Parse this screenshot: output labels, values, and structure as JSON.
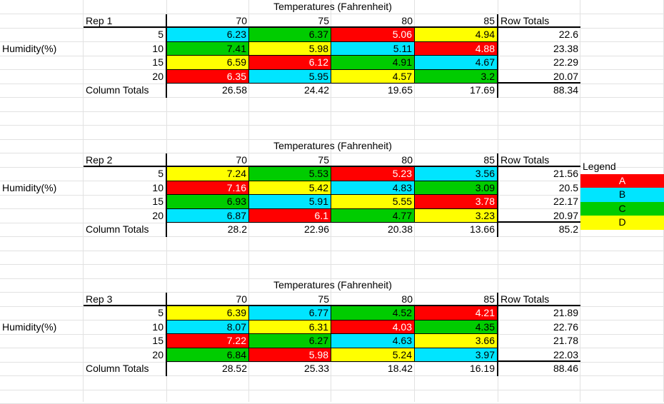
{
  "colors": {
    "A": "#ff0000",
    "B": "#00e5ff",
    "C": "#00cc00",
    "D": "#ffff00",
    "gridline": "#e2e2e2"
  },
  "header_text": "Temperatures (Fahrenheit)",
  "humidity_label": "Humidity(%)",
  "column_totals_label": "Column Totals",
  "row_totals_label": "Row Totals",
  "temperatures": [
    "70",
    "75",
    "80",
    "85"
  ],
  "humidities": [
    "5",
    "10",
    "15",
    "20"
  ],
  "legend": {
    "title": "Legend",
    "items": [
      "A",
      "B",
      "C",
      "D"
    ]
  },
  "reps": [
    {
      "label": "Rep 1",
      "rows": [
        {
          "values": [
            "6.23",
            "6.37",
            "5.06",
            "4.94"
          ],
          "groups": [
            "B",
            "C",
            "A",
            "D"
          ],
          "total": "22.6"
        },
        {
          "values": [
            "7.41",
            "5.98",
            "5.11",
            "4.88"
          ],
          "groups": [
            "C",
            "D",
            "B",
            "A"
          ],
          "total": "23.38"
        },
        {
          "values": [
            "6.59",
            "6.12",
            "4.91",
            "4.67"
          ],
          "groups": [
            "D",
            "A",
            "C",
            "B"
          ],
          "total": "22.29"
        },
        {
          "values": [
            "6.35",
            "5.95",
            "4.57",
            "3.2"
          ],
          "groups": [
            "A",
            "B",
            "D",
            "C"
          ],
          "total": "20.07"
        }
      ],
      "column_totals": [
        "26.58",
        "24.42",
        "19.65",
        "17.69"
      ],
      "grand_total": "88.34"
    },
    {
      "label": "Rep 2",
      "rows": [
        {
          "values": [
            "7.24",
            "5.53",
            "5.23",
            "3.56"
          ],
          "groups": [
            "D",
            "C",
            "A",
            "B"
          ],
          "total": "21.56"
        },
        {
          "values": [
            "7.16",
            "5.42",
            "4.83",
            "3.09"
          ],
          "groups": [
            "A",
            "D",
            "B",
            "C"
          ],
          "total": "20.5"
        },
        {
          "values": [
            "6.93",
            "5.91",
            "5.55",
            "3.78"
          ],
          "groups": [
            "C",
            "B",
            "D",
            "A"
          ],
          "total": "22.17"
        },
        {
          "values": [
            "6.87",
            "6.1",
            "4.77",
            "3.23"
          ],
          "groups": [
            "B",
            "A",
            "C",
            "D"
          ],
          "total": "20.97"
        }
      ],
      "column_totals": [
        "28.2",
        "22.96",
        "20.38",
        "13.66"
      ],
      "grand_total": "85.2"
    },
    {
      "label": "Rep 3",
      "rows": [
        {
          "values": [
            "6.39",
            "6.77",
            "4.52",
            "4.21"
          ],
          "groups": [
            "D",
            "B",
            "C",
            "A"
          ],
          "total": "21.89"
        },
        {
          "values": [
            "8.07",
            "6.31",
            "4.03",
            "4.35"
          ],
          "groups": [
            "B",
            "D",
            "A",
            "C"
          ],
          "total": "22.76"
        },
        {
          "values": [
            "7.22",
            "6.27",
            "4.63",
            "3.66"
          ],
          "groups": [
            "A",
            "C",
            "B",
            "D"
          ],
          "total": "21.78"
        },
        {
          "values": [
            "6.84",
            "5.98",
            "5.24",
            "3.97"
          ],
          "groups": [
            "C",
            "A",
            "D",
            "B"
          ],
          "total": "22.03"
        }
      ],
      "column_totals": [
        "28.52",
        "25.33",
        "18.42",
        "16.19"
      ],
      "grand_total": "88.46"
    }
  ]
}
